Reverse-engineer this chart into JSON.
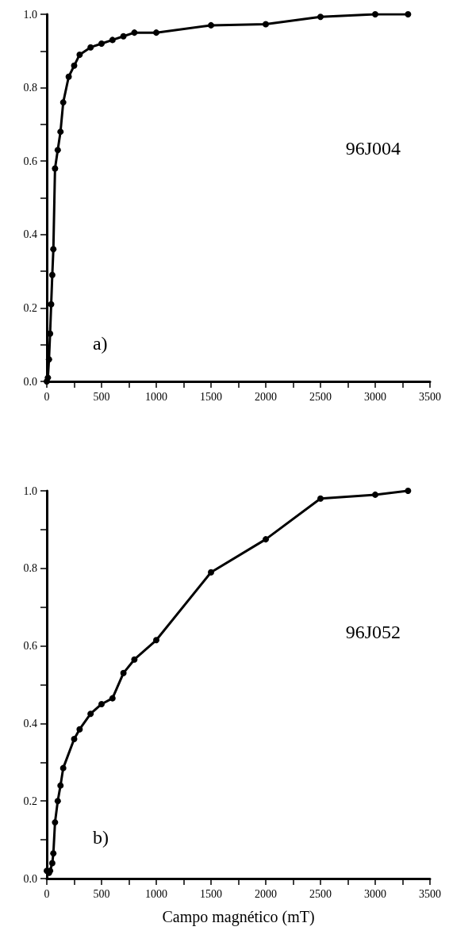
{
  "chart_data": [
    {
      "type": "line",
      "annotations": [
        "a)",
        "96J004"
      ],
      "marker": "circle",
      "line_style": "solid",
      "grid": false,
      "x": [
        0,
        10,
        20,
        30,
        40,
        50,
        60,
        75,
        100,
        125,
        150,
        200,
        250,
        300,
        400,
        500,
        600,
        700,
        800,
        1000,
        1500,
        2000,
        2500,
        3000,
        3300
      ],
      "series": [
        {
          "color": "#000000",
          "values": [
            0,
            0.01,
            0.06,
            0.13,
            0.21,
            0.29,
            0.36,
            0.58,
            0.63,
            0.68,
            0.76,
            0.83,
            0.86,
            0.89,
            0.91,
            0.92,
            0.93,
            0.94,
            0.95,
            0.95,
            0.97,
            0.973,
            0.993,
            1.0,
            1.0
          ]
        }
      ],
      "xlim": [
        0,
        3500
      ],
      "ylim": [
        0,
        1
      ],
      "xticks": [
        0,
        {
          "value": 250,
          "label": null
        },
        500,
        {
          "value": 750,
          "label": null
        },
        1000,
        {
          "value": 1250,
          "label": null
        },
        1500,
        {
          "value": 1750,
          "label": null
        },
        2000,
        {
          "value": 2250,
          "label": null
        },
        2500,
        {
          "value": 2750,
          "label": null
        },
        3000,
        {
          "value": 3250,
          "label": null
        },
        3500
      ],
      "yticks": [
        {
          "value": 0,
          "label": "0.0"
        },
        {
          "value": 0.1,
          "label": null
        },
        {
          "value": 0.2,
          "label": "0.2"
        },
        {
          "value": 0.3,
          "label": null
        },
        {
          "value": 0.4,
          "label": "0.4"
        },
        {
          "value": 0.5,
          "label": null
        },
        {
          "value": 0.6,
          "label": "0.6"
        },
        {
          "value": 0.7,
          "label": null
        },
        {
          "value": 0.8,
          "label": "0.8"
        },
        {
          "value": 0.9,
          "label": null
        },
        {
          "value": 1,
          "label": "1.0"
        }
      ]
    },
    {
      "type": "line",
      "annotations": [
        "b)",
        "96J052"
      ],
      "xlabel": "Campo magnético (mT)",
      "marker": "circle",
      "line_style": "solid",
      "grid": false,
      "x": [
        0,
        20,
        30,
        50,
        60,
        75,
        100,
        125,
        150,
        250,
        300,
        400,
        500,
        600,
        700,
        800,
        1000,
        1500,
        2000,
        2500,
        3000,
        3300
      ],
      "series": [
        {
          "color": "#000000",
          "values": [
            0.02,
            0.015,
            0.02,
            0.04,
            0.065,
            0.145,
            0.2,
            0.24,
            0.285,
            0.36,
            0.385,
            0.425,
            0.45,
            0.465,
            0.53,
            0.565,
            0.615,
            0.79,
            0.875,
            0.98,
            0.99,
            1.0
          ]
        }
      ],
      "xlim": [
        0,
        3500
      ],
      "ylim": [
        0,
        1
      ],
      "xticks": [
        0,
        {
          "value": 250,
          "label": null
        },
        500,
        {
          "value": 750,
          "label": null
        },
        1000,
        {
          "value": 1250,
          "label": null
        },
        1500,
        {
          "value": 1750,
          "label": null
        },
        2000,
        {
          "value": 2250,
          "label": null
        },
        2500,
        {
          "value": 2750,
          "label": null
        },
        3000,
        {
          "value": 3250,
          "label": null
        },
        3500
      ],
      "yticks": [
        {
          "value": 0,
          "label": "0.0"
        },
        {
          "value": 0.1,
          "label": null
        },
        {
          "value": 0.2,
          "label": "0.2"
        },
        {
          "value": 0.3,
          "label": null
        },
        {
          "value": 0.4,
          "label": "0.4"
        },
        {
          "value": 0.5,
          "label": null
        },
        {
          "value": 0.6,
          "label": "0.6"
        },
        {
          "value": 0.7,
          "label": null
        },
        {
          "value": 0.8,
          "label": "0.8"
        },
        {
          "value": 0.9,
          "label": null
        },
        {
          "value": 1,
          "label": "1.0"
        }
      ]
    }
  ]
}
